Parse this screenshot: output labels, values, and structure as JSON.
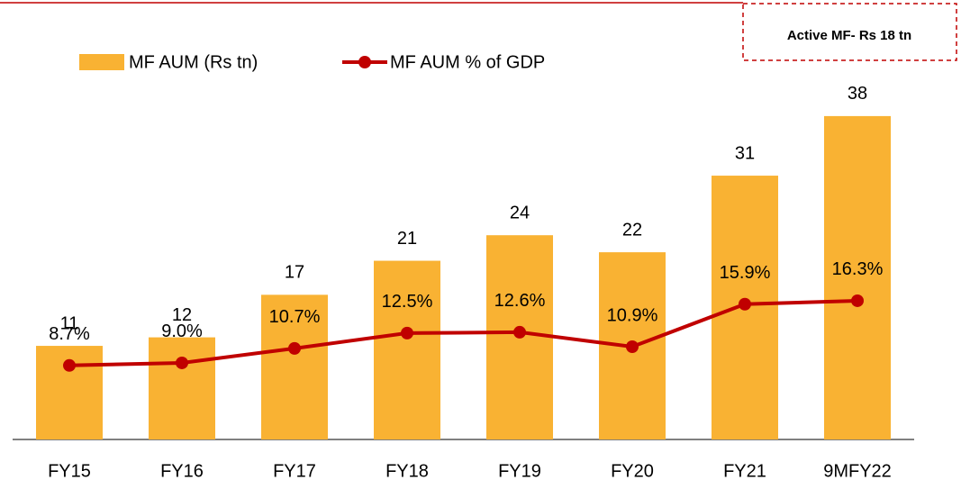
{
  "chart_data": {
    "type": "bar_line",
    "annotation": "Active MF- Rs 18  tn",
    "categories": [
      "FY15",
      "FY16",
      "FY17",
      "FY18",
      "FY19",
      "FY20",
      "FY21",
      "9MFY22"
    ],
    "series": [
      {
        "name": "MF AUM (Rs tn)",
        "color": "#f9b233",
        "type": "bar",
        "values": [
          11,
          12,
          17,
          21,
          24,
          22,
          31,
          38
        ]
      },
      {
        "name": "MF AUM % of GDP",
        "color": "#c00000",
        "type": "line",
        "axis": "y2",
        "values": [
          8.7,
          9.0,
          10.7,
          12.5,
          12.6,
          10.9,
          15.9,
          16.3
        ],
        "value_labels": [
          "8.7%",
          "9.0%",
          "10.7%",
          "12.5%",
          "12.6%",
          "10.9%",
          "15.9%",
          "16.3%"
        ]
      }
    ],
    "ylim": [
      0,
      40
    ],
    "y2lim": [
      0,
      40
    ]
  }
}
